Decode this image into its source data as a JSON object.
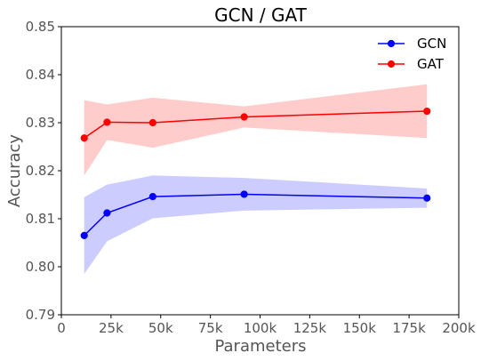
{
  "chart_data": {
    "type": "line",
    "title": "GCN / GAT",
    "xlabel": "Parameters",
    "ylabel": "Accuracy",
    "xlim": [
      0,
      200000
    ],
    "ylim": [
      0.79,
      0.85
    ],
    "grid": false,
    "legend_position": "top-right",
    "x_ticks": [
      {
        "value": 0,
        "label": "0"
      },
      {
        "value": 25000,
        "label": "25k"
      },
      {
        "value": 50000,
        "label": "50k"
      },
      {
        "value": 75000,
        "label": "75k"
      },
      {
        "value": 100000,
        "label": "100k"
      },
      {
        "value": 125000,
        "label": "125k"
      },
      {
        "value": 150000,
        "label": "150k"
      },
      {
        "value": 175000,
        "label": "175k"
      },
      {
        "value": 200000,
        "label": "200k"
      }
    ],
    "y_ticks": [
      {
        "value": 0.79,
        "label": "0.79"
      },
      {
        "value": 0.8,
        "label": "0.80"
      },
      {
        "value": 0.81,
        "label": "0.81"
      },
      {
        "value": 0.82,
        "label": "0.82"
      },
      {
        "value": 0.83,
        "label": "0.83"
      },
      {
        "value": 0.84,
        "label": "0.84"
      },
      {
        "value": 0.85,
        "label": "0.85"
      }
    ],
    "series": [
      {
        "name": "GCN",
        "color": "#0000ff",
        "band_color": "#8080ff",
        "x": [
          11500,
          23000,
          46000,
          92000,
          184000
        ],
        "y": [
          0.8065,
          0.8112,
          0.8146,
          0.8151,
          0.8143
        ],
        "lower": [
          0.7985,
          0.8053,
          0.8101,
          0.8117,
          0.8123
        ],
        "upper": [
          0.8145,
          0.8171,
          0.819,
          0.8185,
          0.8163
        ]
      },
      {
        "name": "GAT",
        "color": "#ff0000",
        "band_color": "#ff8080",
        "x": [
          11500,
          23000,
          46000,
          92000,
          184000
        ],
        "y": [
          0.8268,
          0.8301,
          0.83,
          0.8312,
          0.8324
        ],
        "lower": [
          0.819,
          0.8264,
          0.8248,
          0.829,
          0.8268
        ],
        "upper": [
          0.8347,
          0.8338,
          0.8352,
          0.8334,
          0.838
        ]
      }
    ]
  }
}
